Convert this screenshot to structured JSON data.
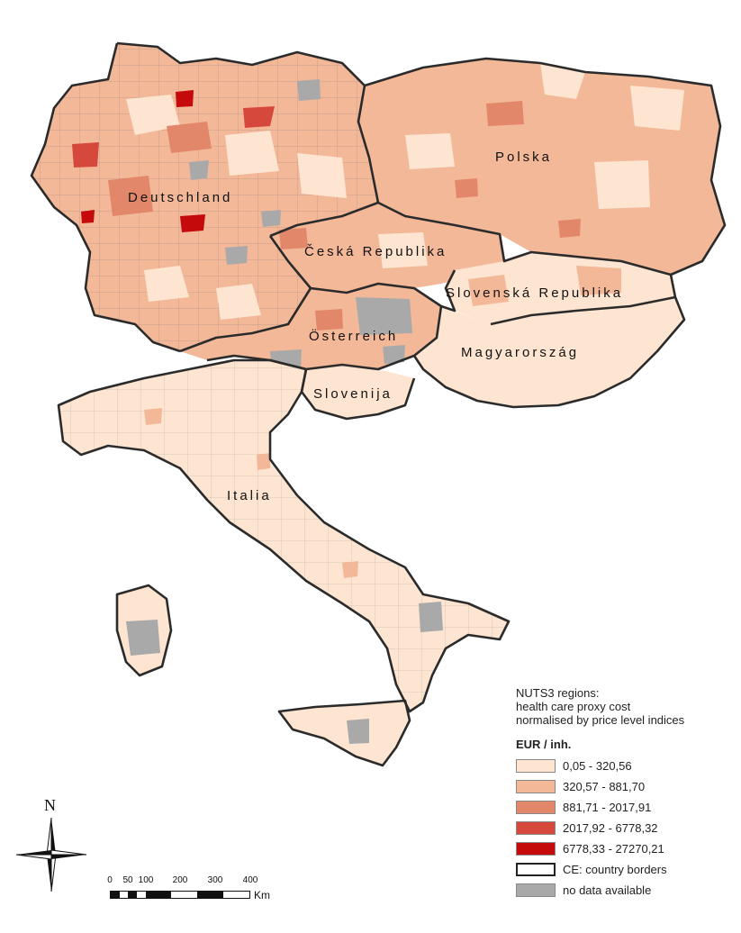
{
  "map": {
    "countries": [
      {
        "key": "de",
        "label": "Deutschland"
      },
      {
        "key": "pl",
        "label": "Polska"
      },
      {
        "key": "cz",
        "label": "Česká Republika"
      },
      {
        "key": "sk",
        "label": "Slovenská Republika"
      },
      {
        "key": "at",
        "label": "Österreich"
      },
      {
        "key": "hu",
        "label": "Magyarország"
      },
      {
        "key": "si",
        "label": "Slovenija"
      },
      {
        "key": "it",
        "label": "Italia"
      }
    ]
  },
  "legend": {
    "title_lines": [
      "NUTS3 regions:",
      "health care proxy cost",
      "normalised by price level indices"
    ],
    "unit": "EUR / inh.",
    "classes": [
      {
        "label": "0,05 - 320,56",
        "color": "#fde5d1"
      },
      {
        "label": "320,57 - 881,70",
        "color": "#f3b898"
      },
      {
        "label": "881,71 - 2017,91",
        "color": "#e3876b"
      },
      {
        "label": "2017,92 - 6778,32",
        "color": "#d6483c"
      },
      {
        "label": "6778,33 - 27270,21",
        "color": "#c40a0a"
      }
    ],
    "border_label": "CE: country borders",
    "nodata_label": "no data available",
    "nodata_color": "#a9a9a9"
  },
  "scale": {
    "ticks": [
      "0",
      "50",
      "100",
      "200",
      "300",
      "400"
    ],
    "unit": "Km"
  },
  "north": {
    "label": "N"
  }
}
